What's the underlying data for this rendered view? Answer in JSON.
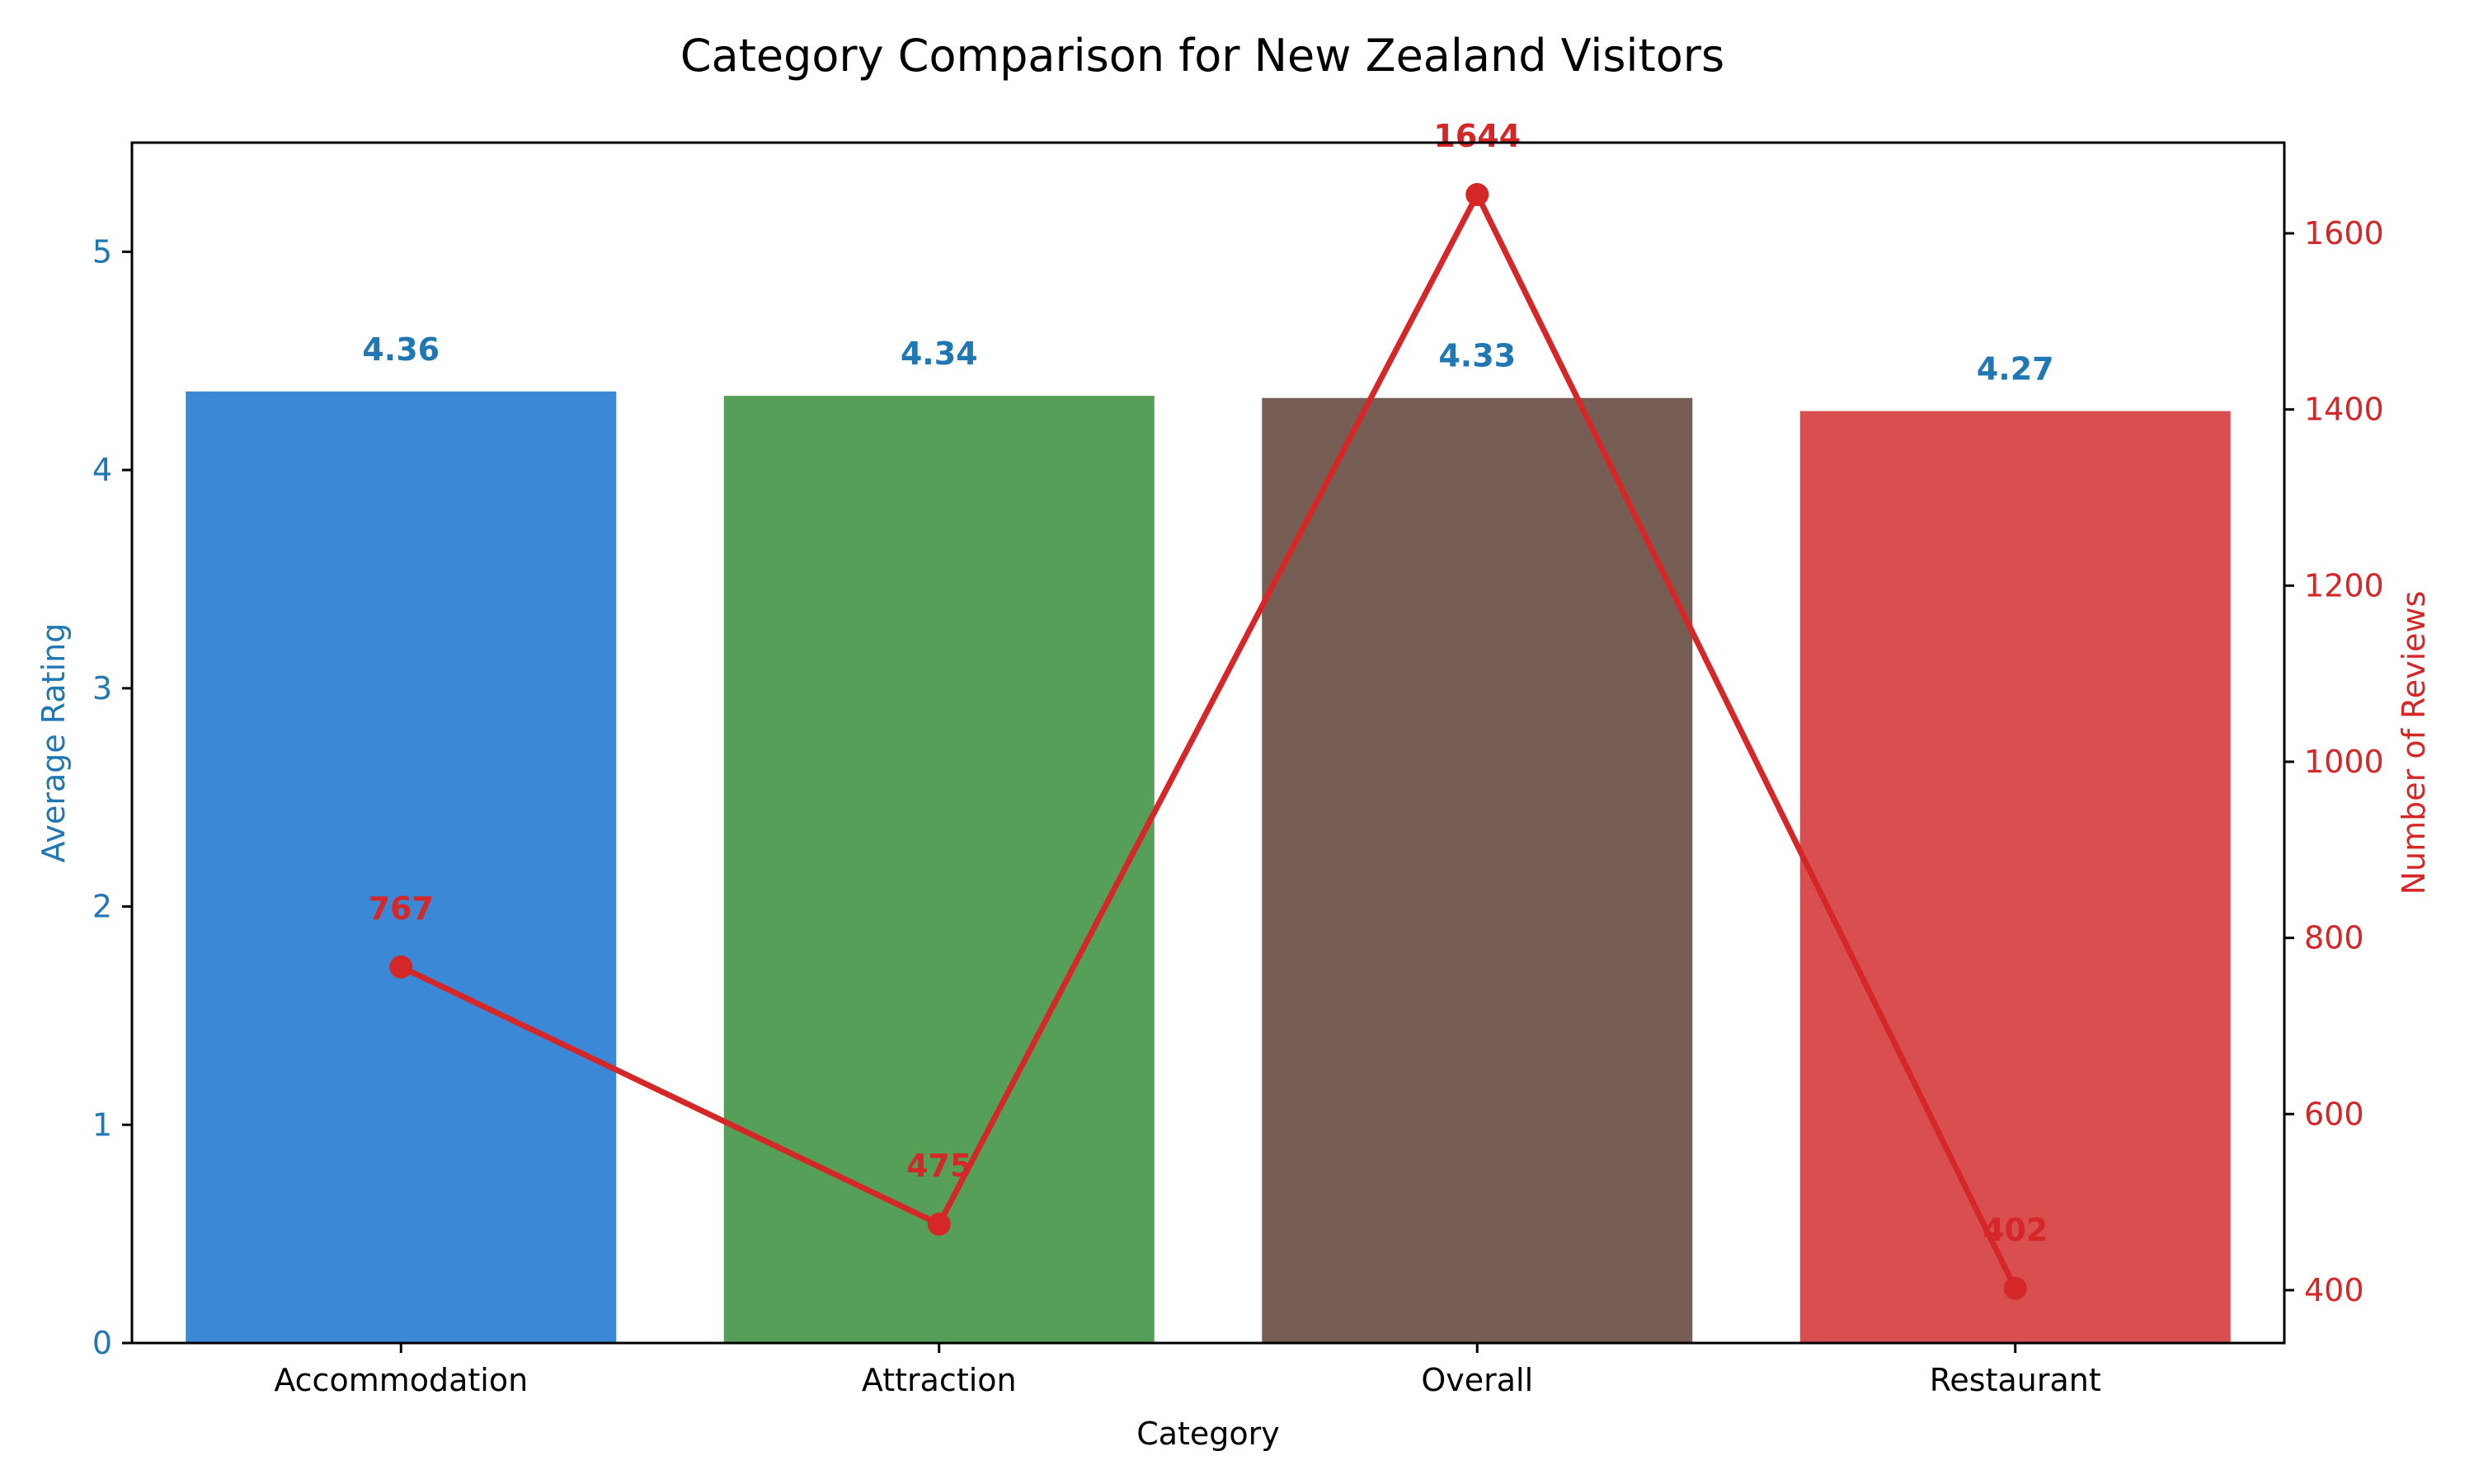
{
  "chart_data": {
    "type": "bar",
    "title": "Category Comparison for New Zealand Visitors",
    "xlabel": "Category",
    "ylabel": "Average Rating",
    "y2label": "Number of Reviews",
    "categories": [
      "Accommodation",
      "Attraction",
      "Overall",
      "Restaurant"
    ],
    "series": [
      {
        "kind": "bar",
        "axis": "left",
        "values": [
          4.36,
          4.34,
          4.33,
          4.27
        ],
        "labels": [
          "4.36",
          "4.34",
          "4.33",
          "4.27"
        ],
        "colors": [
          "#3b88d6",
          "#569f59",
          "#775e55",
          "#d94f4f"
        ]
      },
      {
        "kind": "line",
        "axis": "right",
        "values": [
          767,
          475,
          1644,
          402
        ],
        "labels": [
          "767",
          "475",
          "1644",
          "402"
        ],
        "color": "#d62728"
      }
    ],
    "ylim": [
      0,
      5.5
    ],
    "yticks": [
      0,
      1,
      2,
      3,
      4,
      5
    ],
    "y2lim": [
      340,
      1703
    ],
    "y2ticks": [
      400,
      600,
      800,
      1000,
      1200,
      1400,
      1600
    ],
    "left_axis_color": "#1f77b4",
    "right_axis_color": "#d62728",
    "grid": false,
    "legend": "none"
  }
}
